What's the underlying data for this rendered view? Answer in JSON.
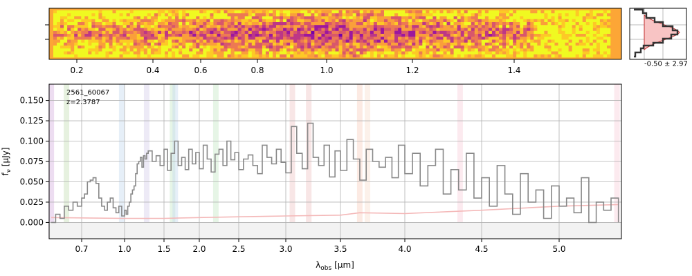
{
  "chart_data": [
    {
      "type": "heatmap",
      "name": "2d-spectrum",
      "x_ticks": [
        {
          "value": 0.2,
          "label": "0.2"
        },
        {
          "value": 0.4,
          "label": "0.4"
        },
        {
          "value": 0.6,
          "label": "0.6"
        },
        {
          "value": 0.8,
          "label": "0.8"
        },
        {
          "value": 1.0,
          "label": "1.0"
        },
        {
          "value": 1.2,
          "label": "1.2"
        },
        {
          "value": 1.4,
          "label": "1.4"
        }
      ],
      "colormap": "plasma",
      "rows": 16,
      "cols": 160
    },
    {
      "type": "histogram",
      "name": "residual-profile",
      "annotation": "-0.50 ± 2.97",
      "fill_color": "#f8c4c4",
      "line_color": "#c03030"
    },
    {
      "type": "line",
      "name": "1d-spectrum",
      "title": "",
      "xlabel_main": "λ",
      "xlabel_sub": "obs",
      "xlabel_unit": "[μm]",
      "ylabel_main": "f",
      "ylabel_sub": "ν",
      "ylabel_unit": "[μJy]",
      "xlim": [
        0.55,
        5.42
      ],
      "ylim": [
        -0.02,
        0.17
      ],
      "grid": true,
      "x_ticks": [
        {
          "value": 0.7,
          "label": "0.7"
        },
        {
          "value": 1.0,
          "label": "1.0"
        },
        {
          "value": 1.5,
          "label": "1.5"
        },
        {
          "value": 2.0,
          "label": "2.0"
        },
        {
          "value": 2.5,
          "label": "2.5"
        },
        {
          "value": 3.0,
          "label": "3.0"
        },
        {
          "value": 3.5,
          "label": "3.5"
        },
        {
          "value": 4.0,
          "label": "4.0"
        },
        {
          "value": 4.5,
          "label": "4.5"
        },
        {
          "value": 5.0,
          "label": "5.0"
        }
      ],
      "y_ticks": [
        {
          "value": 0.0,
          "label": "0.000"
        },
        {
          "value": 0.025,
          "label": "0.025"
        },
        {
          "value": 0.05,
          "label": "0.050"
        },
        {
          "value": 0.075,
          "label": "0.075"
        },
        {
          "value": 0.1,
          "label": "0.100"
        },
        {
          "value": 0.125,
          "label": "0.125"
        },
        {
          "value": 0.15,
          "label": "0.150"
        }
      ],
      "annotations": [
        "2561_60067",
        "z=2.3787"
      ],
      "emission_lines": [
        {
          "x": 0.56,
          "color": "#d8b4e0"
        },
        {
          "x": 0.63,
          "color": "#c8e0b8"
        },
        {
          "x": 0.98,
          "color": "#c8dcf0"
        },
        {
          "x": 1.28,
          "color": "#d8d0ec"
        },
        {
          "x": 1.62,
          "color": "#c8e8c8"
        },
        {
          "x": 1.66,
          "color": "#c8dcf0"
        },
        {
          "x": 2.21,
          "color": "#c8e8c8"
        },
        {
          "x": 3.06,
          "color": "#f0c8c8"
        },
        {
          "x": 3.21,
          "color": "#f0c8c8"
        },
        {
          "x": 3.65,
          "color": "#f8d0c0"
        },
        {
          "x": 3.71,
          "color": "#f8e0d0"
        },
        {
          "x": 4.36,
          "color": "#f8d0dc"
        },
        {
          "x": 5.39,
          "color": "#f8d0dc"
        }
      ],
      "series": [
        {
          "name": "flux",
          "color": "#888888",
          "x": [
            0.56,
            0.58,
            0.6,
            0.62,
            0.64,
            0.66,
            0.68,
            0.7,
            0.72,
            0.74,
            0.76,
            0.78,
            0.8,
            0.82,
            0.84,
            0.86,
            0.88,
            0.9,
            0.92,
            0.94,
            0.96,
            0.98,
            1.0,
            1.02,
            1.04,
            1.06,
            1.08,
            1.1,
            1.12,
            1.14,
            1.16,
            1.18,
            1.2,
            1.22,
            1.24,
            1.26,
            1.28,
            1.3,
            1.35,
            1.4,
            1.45,
            1.5,
            1.55,
            1.6,
            1.65,
            1.7,
            1.75,
            1.8,
            1.85,
            1.9,
            1.95,
            2.0,
            2.05,
            2.1,
            2.15,
            2.2,
            2.25,
            2.3,
            2.35,
            2.4,
            2.45,
            2.5,
            2.55,
            2.6,
            2.65,
            2.7,
            2.75,
            2.8,
            2.85,
            2.9,
            2.95,
            3.0,
            3.05,
            3.1,
            3.15,
            3.2,
            3.25,
            3.3,
            3.35,
            3.4,
            3.45,
            3.5,
            3.55,
            3.6,
            3.65,
            3.7,
            3.75,
            3.8,
            3.85,
            3.9,
            3.95,
            4.0,
            4.05,
            4.1,
            4.15,
            4.2,
            4.25,
            4.3,
            4.35,
            4.4,
            4.45,
            4.5,
            4.55,
            4.6,
            4.65,
            4.7,
            4.75,
            4.8,
            4.85,
            4.9,
            4.95,
            5.0,
            5.05,
            5.1,
            5.15,
            5.2,
            5.25,
            5.3,
            5.35,
            5.4
          ],
          "y": [
            0.0,
            0.01,
            0.005,
            0.02,
            0.015,
            0.025,
            0.02,
            0.03,
            0.035,
            0.05,
            0.052,
            0.055,
            0.048,
            0.03,
            0.02,
            0.015,
            0.025,
            0.03,
            0.018,
            0.012,
            0.02,
            0.008,
            0.015,
            0.01,
            0.02,
            0.025,
            0.035,
            0.04,
            0.045,
            0.06,
            0.072,
            0.075,
            0.08,
            0.068,
            0.082,
            0.078,
            0.085,
            0.088,
            0.075,
            0.082,
            0.07,
            0.09,
            0.064,
            0.085,
            0.1,
            0.07,
            0.08,
            0.065,
            0.09,
            0.072,
            0.086,
            0.066,
            0.095,
            0.078,
            0.062,
            0.084,
            0.09,
            0.07,
            0.1,
            0.077,
            0.086,
            0.065,
            0.078,
            0.083,
            0.07,
            0.06,
            0.095,
            0.08,
            0.072,
            0.09,
            0.074,
            0.061,
            0.118,
            0.085,
            0.066,
            0.122,
            0.08,
            0.07,
            0.095,
            0.056,
            0.088,
            0.064,
            0.102,
            0.078,
            0.052,
            0.09,
            0.075,
            0.068,
            0.08,
            0.055,
            0.095,
            0.06,
            0.085,
            0.045,
            0.07,
            0.09,
            0.035,
            0.065,
            0.04,
            0.085,
            0.03,
            0.055,
            0.02,
            0.07,
            0.035,
            0.01,
            0.06,
            0.025,
            0.04,
            0.005,
            0.045,
            0.02,
            0.03,
            0.012,
            0.055,
            0.0,
            0.025,
            0.015,
            0.03,
            0.0
          ]
        },
        {
          "name": "error",
          "color": "#f4b8b8",
          "x": [
            0.56,
            1.0,
            1.5,
            2.0,
            2.5,
            3.0,
            3.5,
            3.65,
            4.0,
            4.5,
            5.0,
            5.4
          ],
          "y": [
            0.006,
            0.005,
            0.005,
            0.006,
            0.007,
            0.008,
            0.009,
            0.012,
            0.011,
            0.015,
            0.02,
            0.022
          ]
        }
      ]
    }
  ]
}
